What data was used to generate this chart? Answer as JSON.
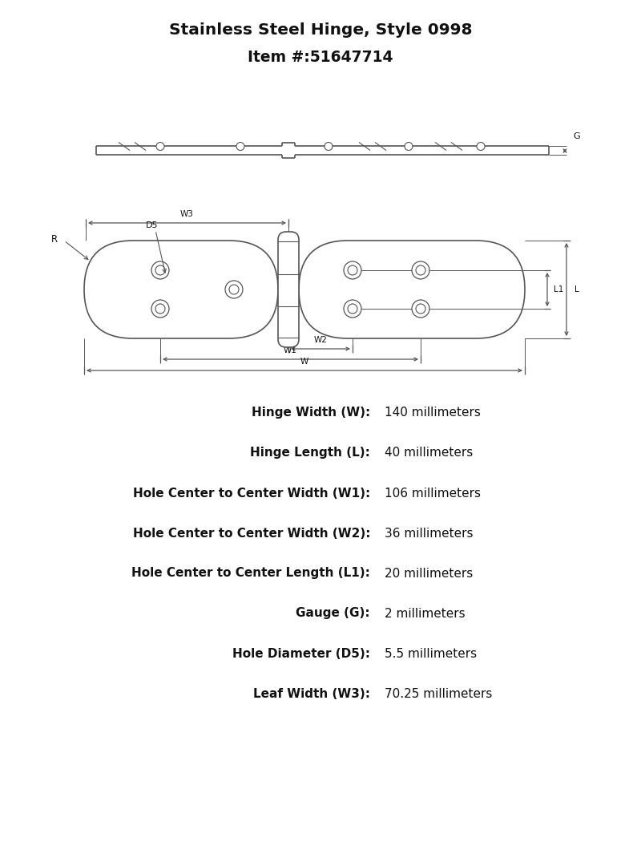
{
  "title_line1": "Stainless Steel Hinge, Style 0998",
  "title_line2": "Item #:51647714",
  "bg_color": "#ffffff",
  "line_color": "#555555",
  "dim_color": "#555555",
  "specs": [
    {
      "label": "Hinge Width (W):",
      "value": "140 millimeters"
    },
    {
      "label": "Hinge Length (L):",
      "value": "40 millimeters"
    },
    {
      "label": "Hole Center to Center Width (W1):",
      "value": "106 millimeters"
    },
    {
      "label": "Hole Center to Center Width (W2):",
      "value": "36 millimeters"
    },
    {
      "label": "Hole Center to Center Length (L1):",
      "value": "20 millimeters"
    },
    {
      "label": "Gauge (G):",
      "value": "2 millimeters"
    },
    {
      "label": "Hole Diameter (D5):",
      "value": "5.5 millimeters"
    },
    {
      "label": "Leaf Width (W3):",
      "value": "70.25 millimeters"
    }
  ],
  "fig_width": 8.0,
  "fig_height": 10.6,
  "dpi": 100
}
